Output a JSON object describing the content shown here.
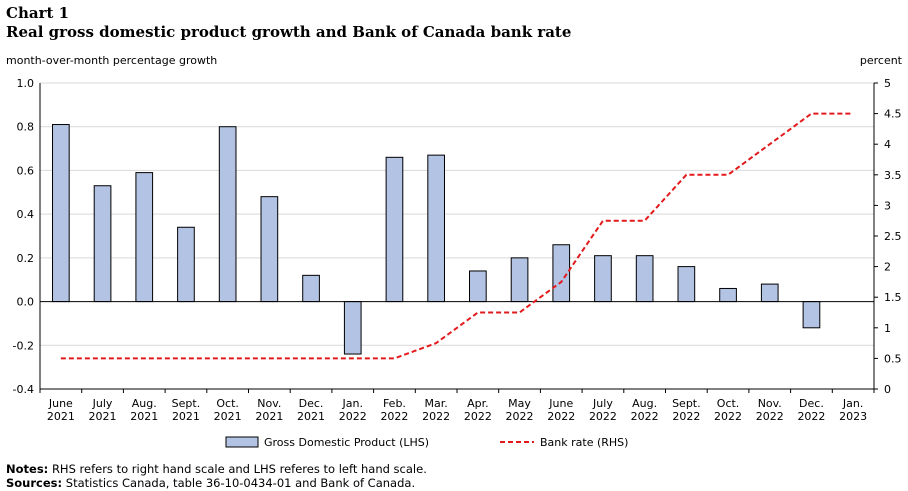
{
  "header": {
    "chart_number": "Chart 1",
    "title": "Real gross domestic product growth and Bank of Canada bank rate"
  },
  "notes": {
    "notes_label": "Notes:",
    "notes_text": "RHS refers to right hand scale and LHS referes to left hand scale.",
    "sources_label": "Sources:",
    "sources_text": "Statistics Canada, table 36-10-0434-01 and Bank of Canada."
  },
  "colors": {
    "bar_fill": "#b3c3e4",
    "bar_stroke": "#000000",
    "line": "#e31a1c",
    "grid": "#d9d9d9"
  },
  "chart_data": {
    "type": "bar",
    "title": "Real gross domestic product growth and Bank of Canada bank rate",
    "ylabel_left": "month-over-month percentage growth",
    "ylabel_right": "percent",
    "ylim_left": [
      -0.4,
      1.0
    ],
    "ylim_right": [
      0,
      5
    ],
    "yticks_left": [
      "1.0",
      "0.8",
      "0.6",
      "0.4",
      "0.2",
      "0.0",
      "-0.2",
      "-0.4"
    ],
    "yticks_right": [
      "5",
      "4.5",
      "4",
      "3.5",
      "3",
      "2.5",
      "2",
      "1.5",
      "1",
      "0.5",
      "0"
    ],
    "grid": true,
    "legend_position": "bottom",
    "categories": [
      [
        "June",
        "2021"
      ],
      [
        "July",
        "2021"
      ],
      [
        "Aug.",
        "2021"
      ],
      [
        "Sept.",
        "2021"
      ],
      [
        "Oct.",
        "2021"
      ],
      [
        "Nov.",
        "2021"
      ],
      [
        "Dec.",
        "2021"
      ],
      [
        "Jan.",
        "2022"
      ],
      [
        "Feb.",
        "2022"
      ],
      [
        "Mar.",
        "2022"
      ],
      [
        "Apr.",
        "2022"
      ],
      [
        "May",
        "2022"
      ],
      [
        "June",
        "2022"
      ],
      [
        "July",
        "2022"
      ],
      [
        "Aug.",
        "2022"
      ],
      [
        "Sept.",
        "2022"
      ],
      [
        "Oct.",
        "2022"
      ],
      [
        "Nov.",
        "2022"
      ],
      [
        "Dec.",
        "2022"
      ],
      [
        "Jan.",
        "2023"
      ]
    ],
    "series": [
      {
        "name": "Gross Domestic Product (LHS)",
        "type": "bar",
        "axis": "left",
        "values": [
          0.81,
          0.53,
          0.59,
          0.34,
          0.8,
          0.48,
          0.12,
          -0.24,
          0.66,
          0.67,
          0.14,
          0.2,
          0.26,
          0.21,
          0.21,
          0.16,
          0.06,
          0.08,
          -0.12,
          null
        ]
      },
      {
        "name": "Bank rate (RHS)",
        "type": "line",
        "style": "dashed",
        "axis": "right",
        "values": [
          0.5,
          0.5,
          0.5,
          0.5,
          0.5,
          0.5,
          0.5,
          0.5,
          0.5,
          0.75,
          1.25,
          1.25,
          1.75,
          2.75,
          2.75,
          3.5,
          3.5,
          4.0,
          4.5,
          4.5
        ]
      }
    ]
  }
}
